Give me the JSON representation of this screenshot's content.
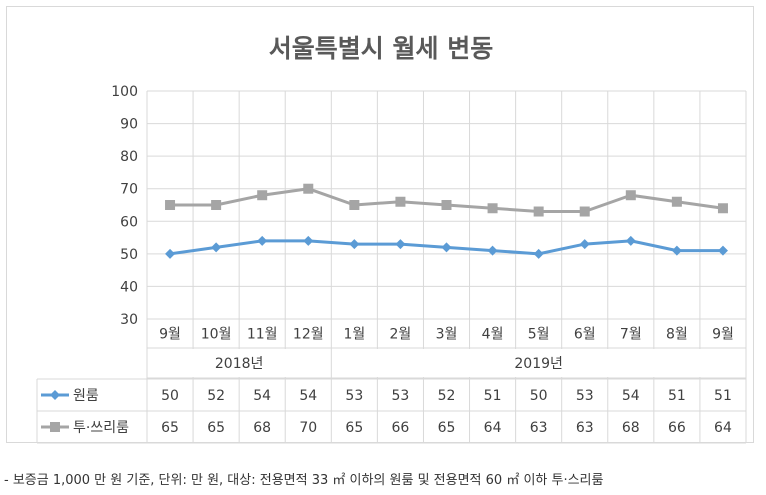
{
  "chart_data": {
    "type": "line",
    "title": "서울특별시 월세 변동",
    "categories": [
      "9월",
      "10월",
      "11월",
      "12월",
      "1월",
      "2월",
      "3월",
      "4월",
      "5월",
      "6월",
      "7월",
      "8월",
      "9월"
    ],
    "year_groups": [
      {
        "label": "2018년",
        "start": 0,
        "end": 3
      },
      {
        "label": "2019년",
        "start": 4,
        "end": 12
      }
    ],
    "ylim": [
      30,
      100
    ],
    "yticks": [
      30,
      40,
      50,
      60,
      70,
      80,
      90,
      100
    ],
    "grid": true,
    "series": [
      {
        "name": "원룸",
        "color": "#5b9bd5",
        "marker": "diamond",
        "values": [
          50,
          52,
          54,
          54,
          53,
          53,
          52,
          51,
          50,
          53,
          54,
          51,
          51
        ]
      },
      {
        "name": "투·쓰리룸",
        "color": "#a5a5a5",
        "marker": "square",
        "values": [
          65,
          65,
          68,
          70,
          65,
          66,
          65,
          64,
          63,
          63,
          68,
          66,
          64
        ]
      }
    ]
  },
  "footnote": "- 보증금 1,000 만 원 기준, 단위: 만 원, 대상: 전용면적 33 ㎡ 이하의 원룸 및 전용면적 60 ㎡ 이하 투·스리룸"
}
